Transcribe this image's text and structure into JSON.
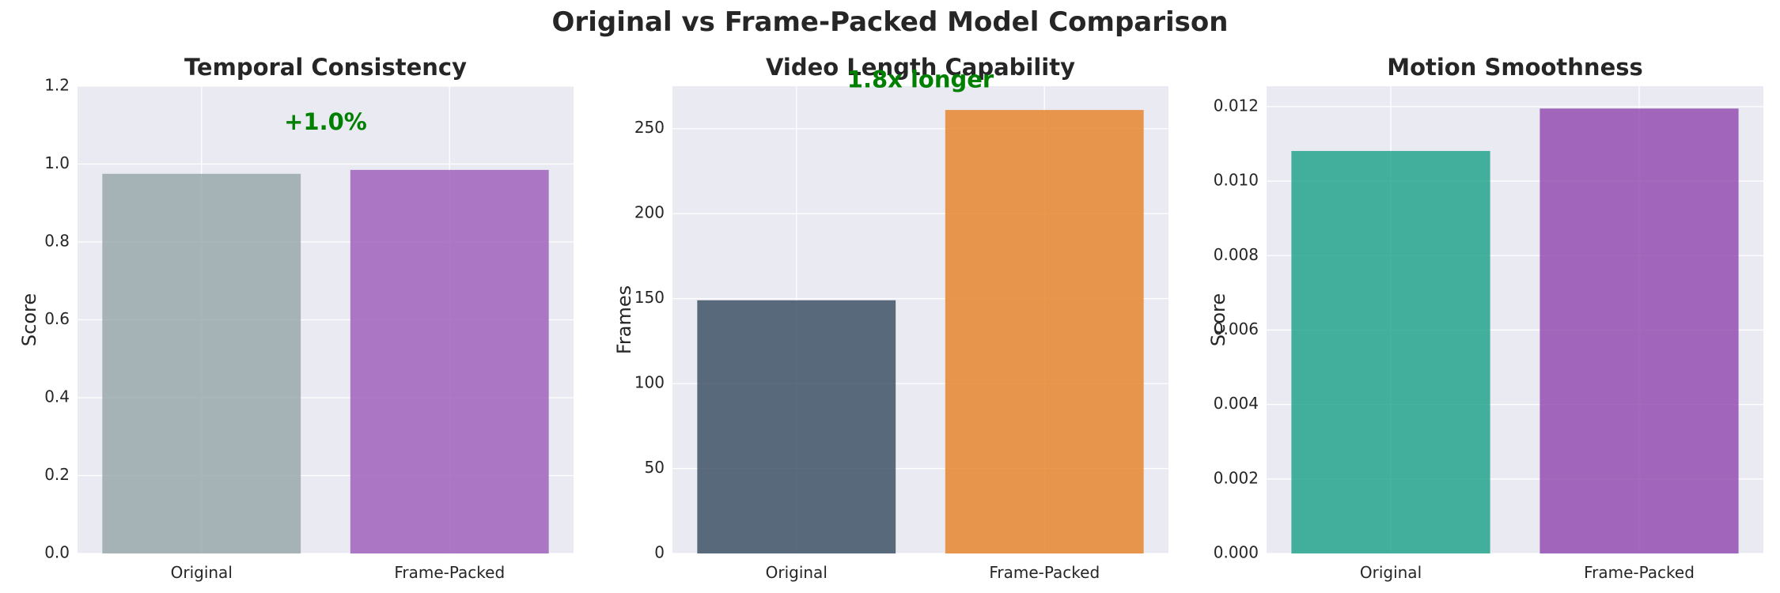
{
  "figure_title": "Original vs Frame-Packed Model Comparison",
  "chart_data": [
    {
      "type": "bar",
      "title": "Temporal Consistency",
      "xlabel": "",
      "ylabel": "Score",
      "categories": [
        "Original",
        "Frame-Packed"
      ],
      "values": [
        0.975,
        0.985
      ],
      "colors": [
        "#95a5a6",
        "#9b59b6"
      ],
      "ylim": [
        0,
        1.2
      ],
      "yticks": [
        0,
        0.2,
        0.4,
        0.6,
        0.8,
        1.0,
        1.2
      ],
      "ytick_labels": [
        "0.0",
        "0.2",
        "0.4",
        "0.6",
        "0.8",
        "1.0",
        "1.2"
      ],
      "annotation": {
        "text": "+1.0%",
        "y": 1.105,
        "color": "#008000"
      },
      "grid": true
    },
    {
      "type": "bar",
      "title": "Video Length Capability",
      "xlabel": "",
      "ylabel": "Frames",
      "categories": [
        "Original",
        "Frame-Packed"
      ],
      "values": [
        149,
        261
      ],
      "colors": [
        "#34495e",
        "#e67e22"
      ],
      "ylim": [
        0,
        275
      ],
      "yticks": [
        0,
        50,
        100,
        150,
        200,
        250
      ],
      "ytick_labels": [
        "0",
        "50",
        "100",
        "150",
        "200",
        "250"
      ],
      "annotation": {
        "text": "1.8x longer",
        "y": 278,
        "color": "#008000"
      },
      "grid": true
    },
    {
      "type": "bar",
      "title": "Motion Smoothness",
      "xlabel": "",
      "ylabel": "Score",
      "categories": [
        "Original",
        "Frame-Packed"
      ],
      "values": [
        0.01081,
        0.01195
      ],
      "colors": [
        "#16a085",
        "#8e44ad"
      ],
      "ylim": [
        0,
        0.01255
      ],
      "yticks": [
        0,
        0.002,
        0.004,
        0.006,
        0.008,
        0.01,
        0.012
      ],
      "ytick_labels": [
        "0.000",
        "0.002",
        "0.004",
        "0.006",
        "0.008",
        "0.010",
        "0.012"
      ],
      "grid": true
    }
  ]
}
